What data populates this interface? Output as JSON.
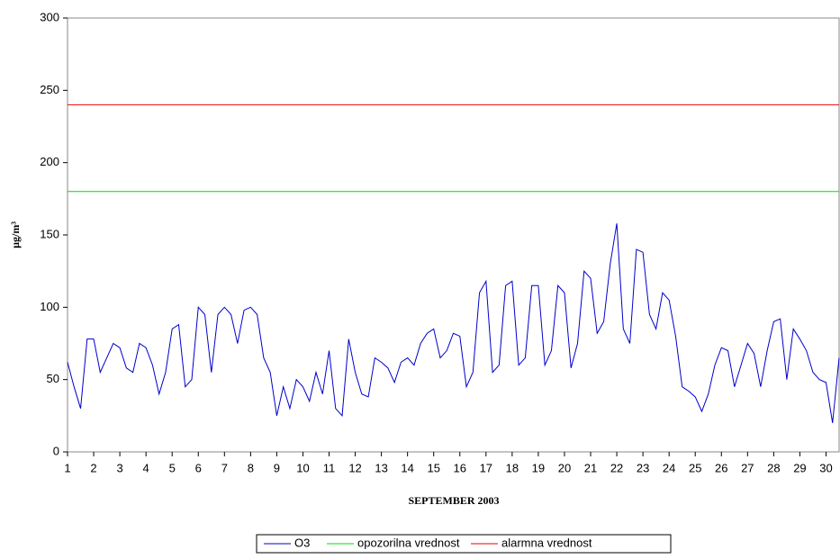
{
  "chart_data": {
    "type": "line",
    "xlabel": "SEPTEMBER 2003",
    "ylabel": "µg/m³",
    "xlim": [
      1,
      30.5
    ],
    "xticks": [
      1,
      2,
      3,
      4,
      5,
      6,
      7,
      8,
      9,
      10,
      11,
      12,
      13,
      14,
      15,
      16,
      17,
      18,
      19,
      20,
      21,
      22,
      23,
      24,
      25,
      26,
      27,
      28,
      29,
      30
    ],
    "ylim": [
      0,
      300
    ],
    "yticks": [
      0,
      50,
      100,
      150,
      200,
      250,
      300
    ],
    "legend": "bottom",
    "series": [
      {
        "name": "O3",
        "color": "#0000cc",
        "x": [
          1,
          1.25,
          1.5,
          1.75,
          2,
          2.25,
          2.5,
          2.75,
          3,
          3.25,
          3.5,
          3.75,
          4,
          4.25,
          4.5,
          4.75,
          5,
          5.25,
          5.5,
          5.75,
          6,
          6.25,
          6.5,
          6.75,
          7,
          7.25,
          7.5,
          7.75,
          8,
          8.25,
          8.5,
          8.75,
          9,
          9.25,
          9.5,
          9.75,
          10,
          10.25,
          10.5,
          10.75,
          11,
          11.25,
          11.5,
          11.75,
          12,
          12.25,
          12.5,
          12.75,
          13,
          13.25,
          13.5,
          13.75,
          14,
          14.25,
          14.5,
          14.75,
          15,
          15.25,
          15.5,
          15.75,
          16,
          16.25,
          16.5,
          16.75,
          17,
          17.25,
          17.5,
          17.75,
          18,
          18.25,
          18.5,
          18.75,
          19,
          19.25,
          19.5,
          19.75,
          20,
          20.25,
          20.5,
          20.75,
          21,
          21.25,
          21.5,
          21.75,
          22,
          22.25,
          22.5,
          22.75,
          23,
          23.25,
          23.5,
          23.75,
          24,
          24.25,
          24.5,
          24.75,
          25,
          25.25,
          25.5,
          25.75,
          26,
          26.25,
          26.5,
          26.75,
          27,
          27.25,
          27.5,
          27.75,
          28,
          28.25,
          28.5,
          28.75,
          29,
          29.25,
          29.5,
          29.75,
          30,
          30.25,
          30.5
        ],
        "values": [
          62,
          45,
          30,
          78,
          78,
          55,
          65,
          75,
          72,
          58,
          55,
          75,
          72,
          60,
          40,
          55,
          85,
          88,
          45,
          50,
          100,
          95,
          55,
          95,
          100,
          95,
          75,
          98,
          100,
          95,
          65,
          55,
          25,
          45,
          30,
          50,
          45,
          35,
          55,
          40,
          70,
          30,
          25,
          78,
          55,
          40,
          38,
          65,
          62,
          58,
          48,
          62,
          65,
          60,
          75,
          82,
          85,
          65,
          70,
          82,
          80,
          45,
          55,
          110,
          118,
          55,
          60,
          115,
          118,
          60,
          65,
          115,
          115,
          60,
          70,
          115,
          110,
          58,
          75,
          125,
          120,
          82,
          90,
          130,
          158,
          85,
          75,
          140,
          138,
          95,
          85,
          110,
          105,
          80,
          45,
          42,
          38,
          28,
          40,
          60,
          72,
          70,
          45,
          60,
          75,
          68,
          45,
          70,
          90,
          92,
          50,
          85,
          78,
          70,
          55,
          50,
          48,
          20,
          65
        ]
      },
      {
        "name": "opozorilna vrednost",
        "color": "#00dd00",
        "x": [
          1,
          30.5
        ],
        "values": [
          180,
          180
        ]
      },
      {
        "name": "alarmna vrednost",
        "color": "#ee0000",
        "x": [
          1,
          30.5
        ],
        "values": [
          240,
          240
        ]
      }
    ]
  }
}
